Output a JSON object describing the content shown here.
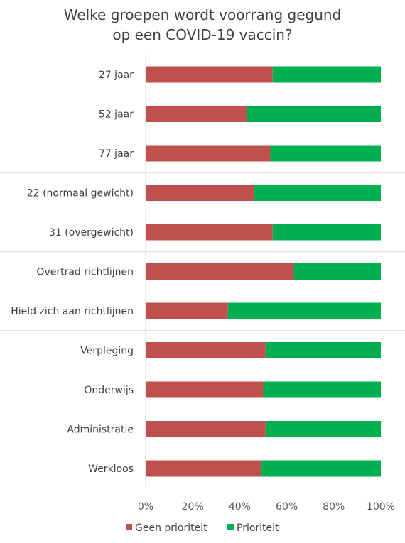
{
  "chart_data": {
    "type": "bar",
    "orientation": "horizontal",
    "stacked": true,
    "title_lines": [
      "Welke groepen wordt voorrang gegund",
      "op een COVID-19 vaccin?"
    ],
    "categories": [
      "27 jaar",
      "52 jaar",
      "77 jaar",
      "22 (normaal gewicht)",
      "31 (overgewicht)",
      "Overtrad richtlijnen",
      "Hield zich aan richtlijnen",
      "Verpleging",
      "Onderwijs",
      "Administratie",
      "Werkloos"
    ],
    "series": [
      {
        "name": "Geen prioriteit",
        "color": "#c0504d",
        "values": [
          54,
          43,
          53,
          46,
          54,
          63,
          35,
          51,
          50,
          51,
          49
        ]
      },
      {
        "name": "Prioriteit",
        "color": "#00b050",
        "values": [
          46,
          57,
          47,
          54,
          46,
          37,
          65,
          49,
          50,
          49,
          51
        ]
      }
    ],
    "group_separators_after": [
      "77 jaar",
      "31 (overgewicht)",
      "Hield zich aan richtlijnen"
    ],
    "x_ticks": [
      "0%",
      "20%",
      "40%",
      "60%",
      "80%",
      "100%"
    ],
    "xlim": [
      0,
      100
    ],
    "legend_position": "bottom",
    "grid": false
  }
}
